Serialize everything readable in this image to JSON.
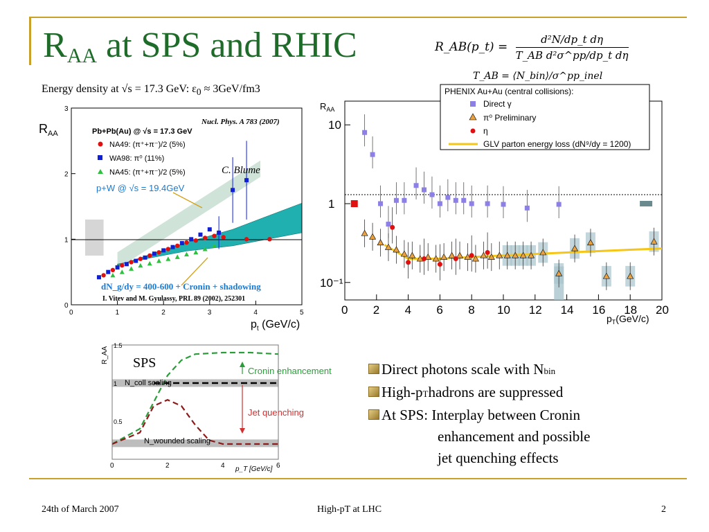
{
  "slide": {
    "title_main": "R",
    "title_sub": "AA",
    "title_rest": " at SPS and RHIC",
    "subtitle": "Energy density at √s = 17.3 GeV: ε",
    "subtitle_sub": "0",
    "subtitle_rest": " ≈ 3GeV/fm3",
    "formula_lhs": "R_AB(p_t) =",
    "formula_num": "d²N/dp_t dη",
    "formula_den": "T_AB d²σ^pp/dp_t dη",
    "formula2": "T_AB = ⟨N_bin⟩/σ^pp_inel"
  },
  "left_plot": {
    "ylabel": "R",
    "ylabel_sub": "AA",
    "xlabel": "p",
    "xlabel_sub": "t",
    "xlabel_rest": " (GeV/c)",
    "reference": "Nucl. Phys. A 783 (2007)",
    "header": "Pb+Pb(Au) @ √s = 17.3 GeV",
    "legend": [
      "NA49: (π⁺+π⁻)/2 (5%)",
      "WA98: π⁰ (11%)",
      "NA45: (π⁺+π⁻)/2 (5%)"
    ],
    "annot_blume": "C. Blume",
    "annot_pw": "p+W @ √s = 19.4GeV",
    "annot_theory": "dN_g/dy = 400-600 + Cronin + shadowing",
    "annot_theory_ref": "I. Vitev and M. Gyulassy, PRL 89 (2002), 252301",
    "xticks": [
      "0",
      "1",
      "2",
      "3",
      "4",
      "5"
    ],
    "yticks": [
      "0",
      "1",
      "2",
      "3"
    ]
  },
  "right_plot": {
    "ylabel": "R",
    "ylabel_sub": "AA",
    "xlabel": "p",
    "xlabel_sub": "T",
    "xlabel_rest": "(GeV/c)",
    "header": "PHENIX Au+Au (central collisions):",
    "legend": [
      "Direct γ",
      "π⁰ Preliminary",
      "η",
      "GLV parton energy loss (dN⁹/dy = 1200)"
    ],
    "xticks": [
      "0",
      "2",
      "4",
      "6",
      "8",
      "10",
      "12",
      "14",
      "16",
      "18",
      "20"
    ],
    "yticks": [
      "10",
      "1",
      "10⁻¹"
    ]
  },
  "sketch_plot": {
    "ylabel": "R_AA",
    "label_sps": "SPS",
    "label_cronin": "Cronin enhancement",
    "label_ncoll": "N_coll scaling",
    "label_jet": "Jet quenching",
    "label_nwounded": "N_wounded scaling",
    "xlabel": "p_T [GeV/c]",
    "xticks": [
      "0",
      "2",
      "4",
      "6"
    ],
    "yticks": [
      "0.5",
      "1",
      "1.5"
    ]
  },
  "bullets": [
    {
      "text": "Direct photons scale with N",
      "sub": "bin",
      "rest": ""
    },
    {
      "text": "High-p",
      "sub": "T",
      "rest": " hadrons are suppressed"
    },
    {
      "text": "At SPS: Interplay between Cronin",
      "sub": "",
      "rest": ""
    }
  ],
  "bullet_cont": [
    "enhancement and possible",
    "jet quenching effects"
  ],
  "footer": {
    "date": "24th of March 2007",
    "center": "High-pT at LHC",
    "page": "2"
  },
  "chart_data": [
    {
      "type": "scatter",
      "title": "Pb+Pb(Au) @ √s = 17.3 GeV",
      "xlabel": "p_t (GeV/c)",
      "ylabel": "R_AA",
      "xlim": [
        0,
        5
      ],
      "ylim": [
        0,
        3
      ],
      "series": [
        {
          "name": "NA49: (π⁺+π⁻)/2 (5%)",
          "color": "#e01010",
          "x": [
            0.7,
            0.9,
            1.1,
            1.3,
            1.5,
            1.7,
            1.9,
            2.1,
            2.3,
            2.5,
            2.7,
            2.9,
            3.1,
            3.3,
            3.8,
            4.3
          ],
          "y": [
            0.45,
            0.53,
            0.6,
            0.65,
            0.7,
            0.75,
            0.8,
            0.85,
            0.9,
            0.95,
            0.98,
            1.02,
            1.05,
            1.03,
            1.0,
            1.0
          ]
        },
        {
          "name": "WA98: π⁰ (11%)",
          "color": "#1020d0",
          "x": [
            0.6,
            0.8,
            1.0,
            1.2,
            1.4,
            1.6,
            1.8,
            2.0,
            2.2,
            2.4,
            2.6,
            2.8,
            3.0,
            3.2,
            3.5,
            3.8
          ],
          "y": [
            0.42,
            0.5,
            0.57,
            0.62,
            0.67,
            0.72,
            0.78,
            0.83,
            0.88,
            0.94,
            1.0,
            1.07,
            1.15,
            1.1,
            1.75,
            1.9
          ]
        },
        {
          "name": "NA45: (π⁺+π⁻)/2 (5%)",
          "color": "#30c040",
          "x": [
            0.9,
            1.1,
            1.3,
            1.5,
            1.7,
            1.9,
            2.1,
            2.3,
            2.5,
            2.7,
            2.9,
            3.1
          ],
          "y": [
            0.45,
            0.5,
            0.55,
            0.6,
            0.63,
            0.67,
            0.7,
            0.73,
            0.77,
            0.8,
            0.85,
            0.9
          ]
        }
      ]
    },
    {
      "type": "scatter",
      "title": "PHENIX Au+Au (central collisions):",
      "xlabel": "p_T(GeV/c)",
      "ylabel": "R_AA",
      "xlim": [
        0,
        20
      ],
      "ylim": [
        0.06,
        20
      ],
      "yscale": "log",
      "series": [
        {
          "name": "Direct γ",
          "color": "#8c80e6",
          "x": [
            1.25,
            1.75,
            2.25,
            2.75,
            3.25,
            3.75,
            4.5,
            5.0,
            5.5,
            6.0,
            6.5,
            7.0,
            7.5,
            8.0,
            9.0,
            10.0,
            11.5,
            13.5
          ],
          "y": [
            8.0,
            4.2,
            1.0,
            0.55,
            1.1,
            1.1,
            1.7,
            1.5,
            1.3,
            1.0,
            1.2,
            1.1,
            1.1,
            1.0,
            1.0,
            0.98,
            0.88,
            0.98
          ]
        },
        {
          "name": "π⁰ Preliminary",
          "color": "#e8a040",
          "x": [
            1.25,
            1.75,
            2.25,
            2.75,
            3.25,
            3.75,
            4.25,
            4.75,
            5.25,
            5.75,
            6.25,
            6.75,
            7.25,
            7.75,
            8.25,
            8.75,
            9.25,
            9.75,
            10.25,
            10.75,
            11.25,
            11.75,
            12.5,
            13.5,
            14.5,
            15.5,
            16.5,
            18.0,
            19.5
          ],
          "y": [
            0.42,
            0.38,
            0.32,
            0.28,
            0.26,
            0.23,
            0.22,
            0.2,
            0.21,
            0.2,
            0.21,
            0.22,
            0.22,
            0.21,
            0.2,
            0.22,
            0.21,
            0.22,
            0.22,
            0.22,
            0.22,
            0.22,
            0.24,
            0.13,
            0.27,
            0.32,
            0.12,
            0.12,
            0.33
          ]
        },
        {
          "name": "η",
          "color": "#e01010",
          "x": [
            3.0,
            4.0,
            5.0,
            6.0,
            7.0,
            8.0,
            9.0
          ],
          "y": [
            0.5,
            0.18,
            0.2,
            0.17,
            0.2,
            0.22,
            0.24
          ]
        },
        {
          "name": "GLV parton energy loss (dN⁹/dy = 1200)",
          "color": "#f5c518",
          "x": [
            2.5,
            4.0,
            6.0,
            8.0,
            10.0,
            12.0,
            14.0,
            16.0,
            18.0,
            20.0
          ],
          "y": [
            0.3,
            0.2,
            0.2,
            0.21,
            0.22,
            0.23,
            0.24,
            0.25,
            0.26,
            0.27
          ]
        }
      ]
    },
    {
      "type": "line",
      "xlabel": "p_T [GeV/c]",
      "ylabel": "R_AA",
      "xlim": [
        0,
        6
      ],
      "ylim": [
        0,
        1.5
      ],
      "series": [
        {
          "name": "Cronin enhancement",
          "color": "#2a9d3a",
          "x": [
            0,
            1,
            1.5,
            2,
            2.5,
            3,
            4,
            5,
            6
          ],
          "y": [
            0.2,
            0.4,
            0.75,
            1.1,
            1.3,
            1.38,
            1.4,
            1.4,
            1.38
          ]
        },
        {
          "name": "Jet quenching",
          "color": "#8b1a1a",
          "x": [
            0,
            1,
            1.5,
            2,
            2.5,
            3,
            3.5,
            4,
            5,
            6
          ],
          "y": [
            0.2,
            0.35,
            0.7,
            0.78,
            0.7,
            0.45,
            0.25,
            0.2,
            0.2,
            0.2
          ]
        }
      ]
    }
  ]
}
